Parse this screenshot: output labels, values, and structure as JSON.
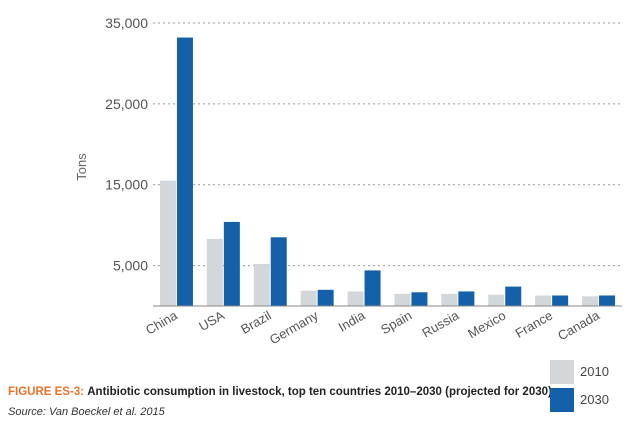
{
  "chart_data": {
    "type": "bar",
    "categories": [
      "China",
      "USA",
      "Brazil",
      "Germany",
      "India",
      "Spain",
      "Russia",
      "Mexico",
      "France",
      "Canada"
    ],
    "series": [
      {
        "name": "2010",
        "color": "#d3d7da",
        "values": [
          15500,
          8300,
          5200,
          1900,
          1800,
          1500,
          1500,
          1400,
          1300,
          1200
        ]
      },
      {
        "name": "2030",
        "color": "#1461aa",
        "values": [
          33200,
          10400,
          8500,
          2000,
          4400,
          1700,
          1800,
          2400,
          1300,
          1300
        ]
      }
    ],
    "ylabel": "Tons",
    "ylim": [
      0,
      35000
    ],
    "yticks": [
      5000,
      15000,
      25000,
      35000
    ],
    "ytick_labels": [
      "5,000",
      "15,000",
      "25,000",
      "35,000"
    ],
    "grid": true
  },
  "caption": {
    "figure_label": "FIGURE ES-3:",
    "text": "Antibiotic consumption in livestock, top ten countries 2010–2030 (projected for 2030)"
  },
  "source": "Source: Van Boeckel et al. 2015",
  "legend": [
    {
      "label": "2010",
      "color": "#d3d7da"
    },
    {
      "label": "2030",
      "color": "#1461aa"
    }
  ]
}
